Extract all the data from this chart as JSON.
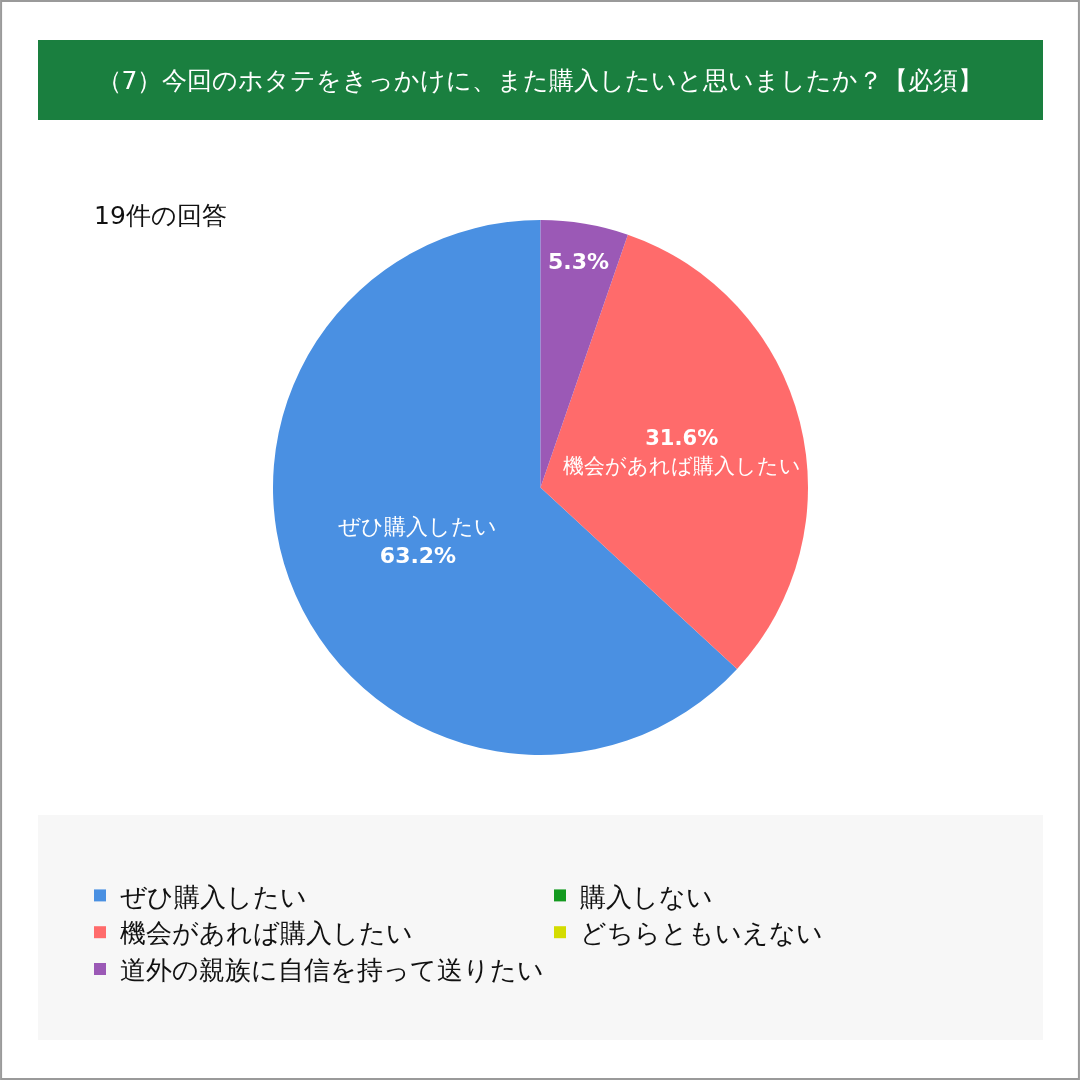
{
  "chart_data": {
    "type": "pie",
    "title": "（7）今回のホタテをきっかけに、また購入したいと思いましたか？【必須】",
    "subtitle": "19件の回答",
    "categories": [
      "ぜひ購入したい",
      "購入しない",
      "機会があれば購入したい",
      "どちらともいえない",
      "道外の親族に自信を持って送りたい"
    ],
    "values": [
      63.2,
      0,
      31.6,
      0,
      5.3
    ],
    "colors": [
      "#4a90e2",
      "#149a1f",
      "#ff6b6b",
      "#d4dc00",
      "#9b59b6"
    ],
    "value_labels": [
      "ぜひ購入したい\n63.2%",
      null,
      "31.6%\n機会があれば購入したい",
      null,
      "5.3%"
    ],
    "legend": "bottom"
  }
}
